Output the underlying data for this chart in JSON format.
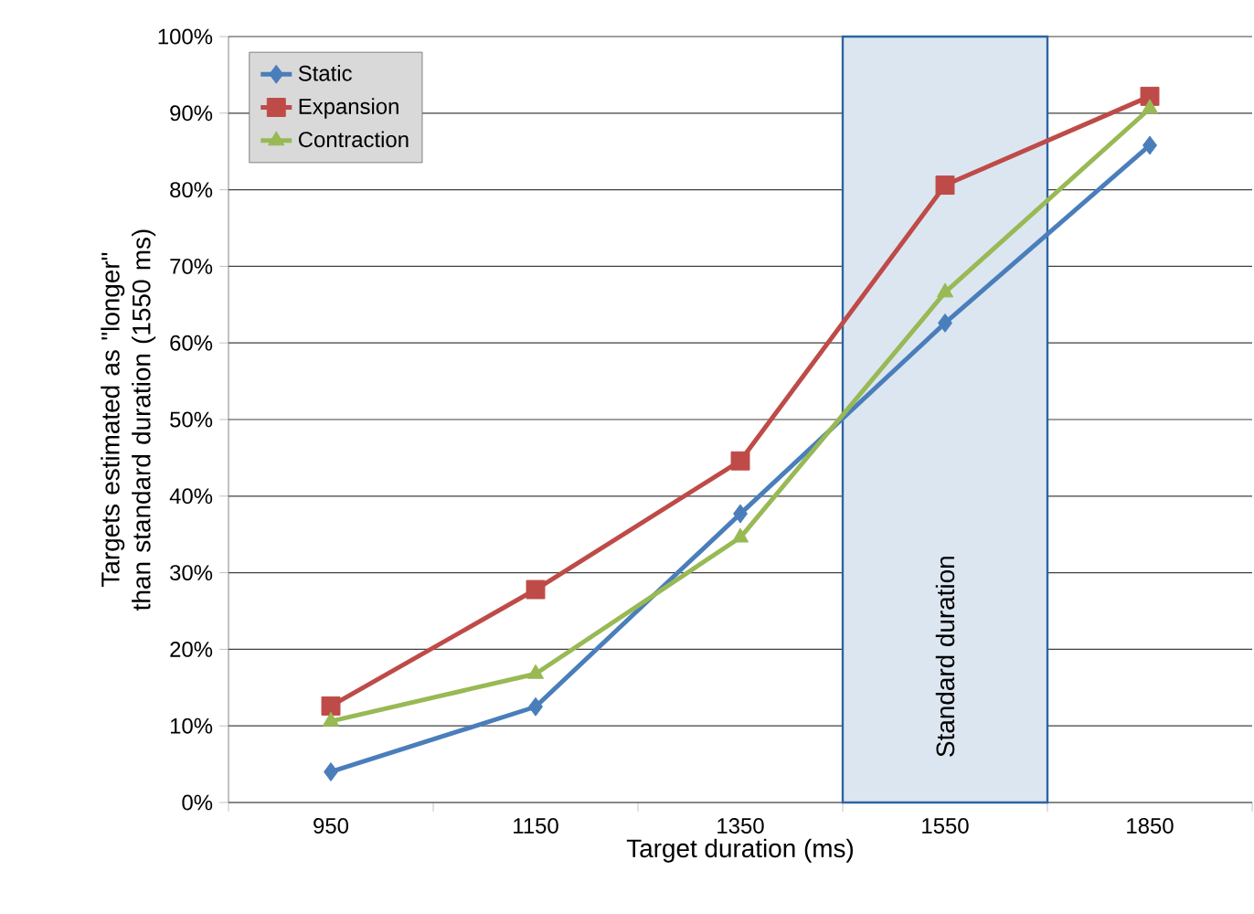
{
  "chart_data": {
    "type": "line",
    "xlabel": "Target duration (ms)",
    "ylabel": "Targets estimated as \"longer\" than standard duration (1550 ms)",
    "categories": [
      "950",
      "1150",
      "1350",
      "1550",
      "1850"
    ],
    "series": [
      {
        "name": "Static",
        "color": "#4a7ebb",
        "marker": "diamond",
        "values": [
          4,
          12.5,
          37.7,
          62.6,
          85.8
        ]
      },
      {
        "name": "Expansion",
        "color": "#be4b48",
        "marker": "square",
        "values": [
          12.6,
          27.8,
          44.6,
          80.6,
          92.2
        ]
      },
      {
        "name": "Contraction",
        "color": "#98b954",
        "marker": "triangle",
        "values": [
          10.6,
          16.8,
          34.6,
          66.6,
          90.6
        ]
      }
    ],
    "ylim": [
      0,
      100
    ],
    "yticks": [
      {
        "value": 0,
        "label": "0%"
      },
      {
        "value": 10,
        "label": "10%"
      },
      {
        "value": 20,
        "label": "20%"
      },
      {
        "value": 30,
        "label": "30%"
      },
      {
        "value": 40,
        "label": "40%"
      },
      {
        "value": 50,
        "label": "50%"
      },
      {
        "value": 60,
        "label": "60%"
      },
      {
        "value": 70,
        "label": "70%"
      },
      {
        "value": 80,
        "label": "80%"
      },
      {
        "value": 90,
        "label": "90%"
      },
      {
        "value": 100,
        "label": "100%"
      }
    ],
    "bands": [
      {
        "axis": "x",
        "from": "1550",
        "to": "1550",
        "label": "Standard duration",
        "color": "#dce6f1"
      }
    ],
    "grid": "y",
    "legend": "top left",
    "line_style": "solid"
  }
}
